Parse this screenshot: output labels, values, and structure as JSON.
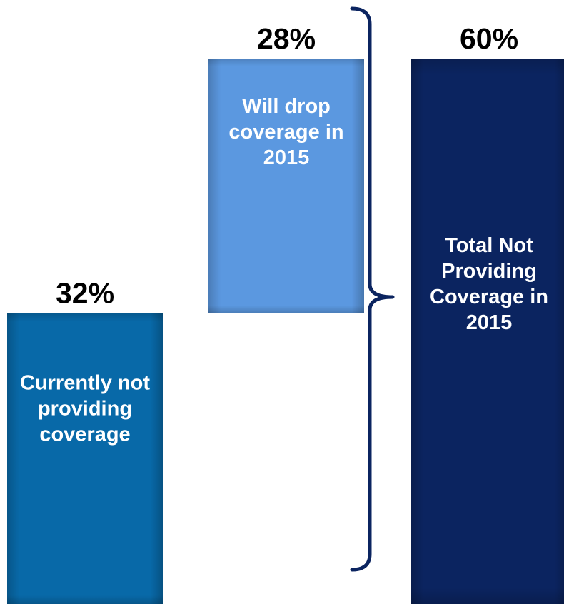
{
  "chart_data": {
    "type": "bar",
    "subtype": "waterfall",
    "ylim": [
      0,
      60
    ],
    "grid": false,
    "legend": "none",
    "categories": [
      "Currently not providing coverage",
      "Will drop coverage in 2015",
      "Total Not Providing Coverage in 2015"
    ],
    "values": [
      32,
      28,
      60
    ],
    "bars": [
      {
        "value": 32,
        "base": 0,
        "value_label": "32%",
        "text_lines": [
          "Currently not",
          "providing",
          "coverage"
        ],
        "color": "#0869a8"
      },
      {
        "value": 28,
        "base": 32,
        "value_label": "28%",
        "text_lines": [
          "Will drop",
          "coverage in",
          "2015"
        ],
        "color": "#5b98e0"
      },
      {
        "value": 60,
        "base": 0,
        "value_label": "60%",
        "text_lines": [
          "Total Not",
          "Providing",
          "Coverage in",
          "2015"
        ],
        "color": "#0b2460"
      }
    ],
    "bracket": {
      "from": 0,
      "to": 60,
      "color": "#0b2460"
    }
  }
}
